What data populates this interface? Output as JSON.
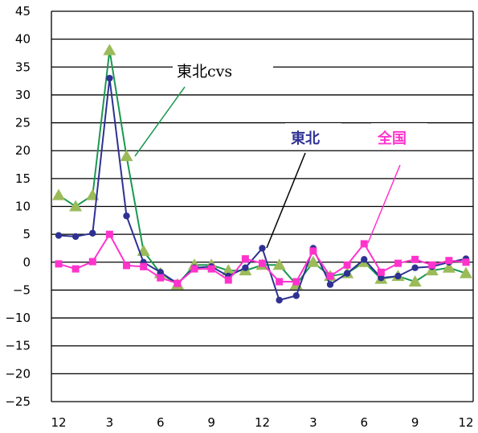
{
  "chart_data": {
    "type": "line",
    "title": "",
    "xlabel": "",
    "ylabel": "",
    "ylim": [
      -25,
      45
    ],
    "ystep": 5,
    "y_ticks": [
      "45",
      "40",
      "35",
      "30",
      "25",
      "20",
      "15",
      "10",
      "5",
      "0",
      "−5",
      "−10",
      "−15",
      "−20",
      "−25"
    ],
    "x_tick_labels": [
      "12",
      "3",
      "6",
      "9",
      "12",
      "3",
      "6",
      "9",
      "12"
    ],
    "x_tick_index": [
      0,
      3,
      6,
      9,
      12,
      15,
      18,
      21,
      24
    ],
    "n_points": 25,
    "grid": true,
    "series": [
      {
        "name": "東北cvs",
        "color": "#1a9850",
        "marker": "triangle",
        "marker_color": "#9bbb59",
        "values": [
          12,
          10,
          12,
          38,
          19,
          2,
          -2,
          -4,
          -0.5,
          -0.5,
          -1.5,
          -1.5,
          -0.5,
          -0.5,
          -4,
          0,
          -2.5,
          -2,
          0,
          -3,
          -2.5,
          -3.5,
          -1.5,
          -1,
          -2
        ]
      },
      {
        "name": "東北",
        "color": "#2e3192",
        "marker": "circle",
        "marker_color": "#2e3192",
        "values": [
          4.8,
          4.6,
          5.2,
          33,
          8.3,
          0,
          -1.8,
          -3.8,
          -1,
          -0.8,
          -2.5,
          -1,
          2.5,
          -6.8,
          -6,
          2.5,
          -4,
          -2,
          0.5,
          -2.8,
          -2.5,
          -1,
          -0.8,
          0,
          0.6
        ]
      },
      {
        "name": "全国",
        "color": "#ff33cc",
        "marker": "square",
        "marker_color": "#ff33cc",
        "values": [
          -0.3,
          -1.2,
          0.1,
          5,
          -0.6,
          -0.8,
          -2.8,
          -3.8,
          -1.2,
          -1.2,
          -3.2,
          0.6,
          -0.2,
          -3.5,
          -3.5,
          2,
          -2.5,
          -0.5,
          3.3,
          -1.8,
          -0.2,
          0.5,
          -0.5,
          0.3,
          0
        ]
      }
    ],
    "annotations": [
      {
        "text": "東北cvs",
        "series": "東北cvs"
      },
      {
        "text": "東北",
        "series": "東北"
      },
      {
        "text": "全国",
        "series": "全国"
      }
    ]
  }
}
